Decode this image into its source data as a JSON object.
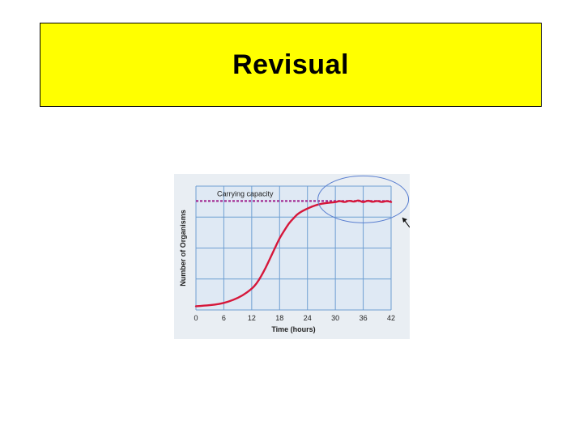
{
  "slide": {
    "title": "Revisual",
    "banner_color": "#ffff00"
  },
  "chart_data": {
    "type": "line",
    "title": "",
    "xlabel": "Time (hours)",
    "ylabel": "Number of Organisms",
    "x_ticks": [
      0,
      6,
      12,
      18,
      24,
      30,
      36,
      42
    ],
    "xlim": [
      0,
      42
    ],
    "ylim": [
      0,
      100
    ],
    "grid": true,
    "background_color": "#dfe9f4",
    "grid_color": "#6f9fd2",
    "curve_color": "#d6173a",
    "capacity_color": "#a32d93",
    "annotation_color": "#5a7fd0",
    "carrying_capacity": {
      "label": "Carrying capacity",
      "y": 88
    },
    "series": [
      {
        "values": [
          [
            0,
            3
          ],
          [
            2,
            3.5
          ],
          [
            4,
            4.2
          ],
          [
            6,
            5.5
          ],
          [
            8,
            8
          ],
          [
            10,
            11.5
          ],
          [
            12,
            17
          ],
          [
            13,
            21
          ],
          [
            14,
            27
          ],
          [
            15,
            34
          ],
          [
            16,
            42
          ],
          [
            17,
            50
          ],
          [
            18,
            58
          ],
          [
            19,
            64
          ],
          [
            20,
            70
          ],
          [
            21,
            74
          ],
          [
            22,
            78
          ],
          [
            24,
            82
          ],
          [
            26,
            85
          ],
          [
            28,
            86.5
          ],
          [
            30,
            87
          ],
          [
            31,
            88.2
          ],
          [
            32,
            86.8
          ],
          [
            33,
            88.5
          ],
          [
            34,
            87.2
          ],
          [
            35,
            88.8
          ],
          [
            36,
            86.6
          ],
          [
            37,
            88.6
          ],
          [
            38,
            87.0
          ],
          [
            39,
            88.3
          ],
          [
            40,
            86.9
          ],
          [
            41,
            88.1
          ],
          [
            42,
            87.2
          ]
        ]
      }
    ]
  }
}
